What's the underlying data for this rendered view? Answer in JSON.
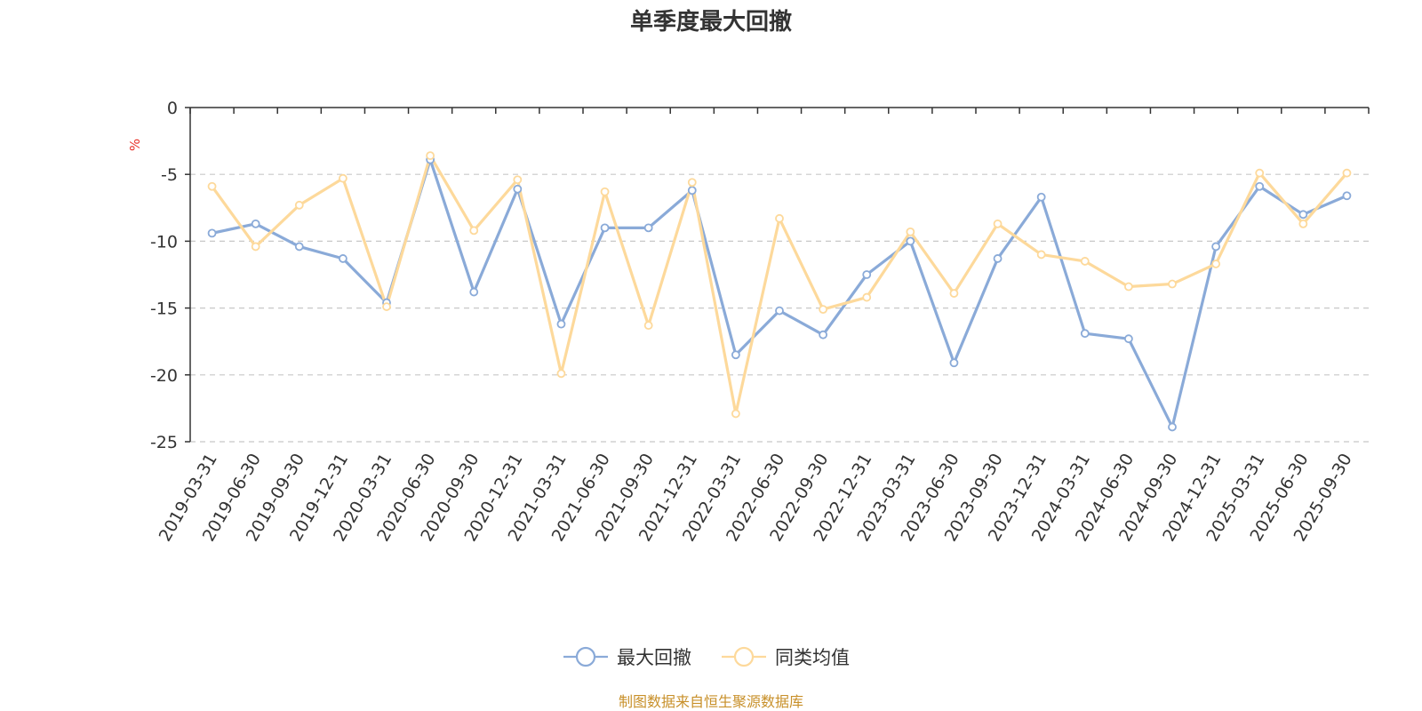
{
  "colors": {
    "series_1": "#8aaad8",
    "series_2": "#fdd99b",
    "unit": "#e8322a",
    "source": "#c8902a",
    "grid": "#c8c8c8",
    "axis": "#333333"
  },
  "source_note": "制图数据来自恒生聚源数据库",
  "chart_data": {
    "type": "line",
    "title": "单季度最大回撤",
    "ylabel": "%",
    "xlabel": "",
    "ylim": [
      -25,
      0
    ],
    "yticks": [
      0,
      -5,
      -10,
      -15,
      -20,
      -25
    ],
    "grid": "horizontal dashed",
    "legend_position": "bottom-center",
    "categories": [
      "2019-03-31",
      "2019-06-30",
      "2019-09-30",
      "2019-12-31",
      "2020-03-31",
      "2020-06-30",
      "2020-09-30",
      "2020-12-31",
      "2021-03-31",
      "2021-06-30",
      "2021-09-30",
      "2021-12-31",
      "2022-03-31",
      "2022-06-30",
      "2022-09-30",
      "2022-12-31",
      "2023-03-31",
      "2023-06-30",
      "2023-09-30",
      "2023-12-31",
      "2024-03-31",
      "2024-06-30",
      "2024-09-30",
      "2024-12-31",
      "2025-03-31",
      "2025-06-30",
      "2025-09-30"
    ],
    "series": [
      {
        "name": "最大回撤",
        "values": [
          -9.4,
          -8.7,
          -10.4,
          -11.3,
          -14.6,
          -3.9,
          -13.8,
          -6.1,
          -16.2,
          -9.0,
          -9.0,
          -6.2,
          -18.5,
          -15.2,
          -17.0,
          -12.5,
          -10.0,
          -19.1,
          -11.3,
          -6.7,
          -16.9,
          -17.3,
          -23.9,
          -10.4,
          -5.9,
          -8.0,
          -6.6
        ]
      },
      {
        "name": "同类均值",
        "values": [
          -5.9,
          -10.4,
          -7.3,
          -5.3,
          -14.9,
          -3.6,
          -9.2,
          -5.4,
          -19.9,
          -6.3,
          -16.3,
          -5.6,
          -22.9,
          -8.3,
          -15.1,
          -14.2,
          -9.3,
          -13.9,
          -8.7,
          -11.0,
          -11.5,
          -13.4,
          -13.2,
          -11.7,
          -4.9,
          -8.7,
          -4.9
        ]
      }
    ]
  }
}
